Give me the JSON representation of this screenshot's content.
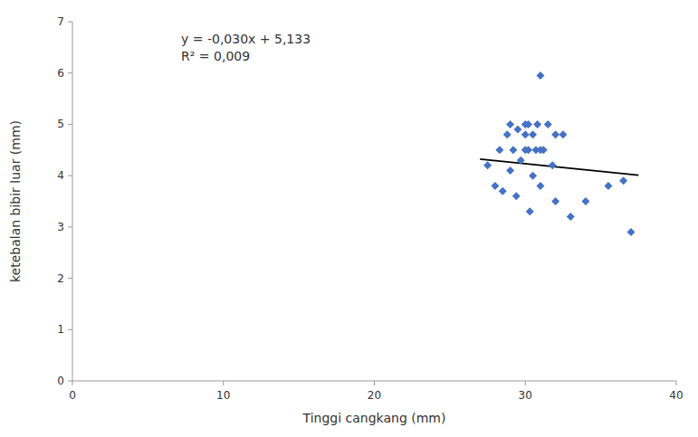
{
  "chart_data": {
    "type": "scatter",
    "title": "",
    "xlabel": "Tinggi cangkang (mm)",
    "ylabel": "ketebalan bibir luar (mm)",
    "annotations": [
      "y = -0,030x + 5,133",
      "R² = 0,009"
    ],
    "xlim": [
      0,
      40
    ],
    "ylim": [
      0,
      7
    ],
    "xticks": [
      0,
      10,
      20,
      30,
      40
    ],
    "yticks": [
      0,
      1,
      2,
      3,
      4,
      5,
      6,
      7
    ],
    "grid": false,
    "series": [
      {
        "type": "scatter",
        "color": "#4472C4",
        "marker": "diamond",
        "x": [
          27.5,
          28.0,
          28.3,
          28.5,
          28.8,
          29.0,
          29.0,
          29.2,
          29.4,
          29.5,
          29.7,
          30.0,
          30.0,
          30.0,
          30.2,
          30.2,
          30.3,
          30.5,
          30.5,
          30.7,
          30.8,
          31.0,
          31.0,
          31.0,
          31.2,
          31.5,
          31.8,
          32.0,
          32.0,
          32.5,
          33.0,
          34.0,
          35.5,
          36.5,
          37.0
        ],
        "values": [
          4.2,
          3.8,
          4.5,
          3.7,
          4.8,
          4.1,
          5.0,
          4.5,
          3.6,
          4.9,
          4.3,
          4.5,
          4.8,
          5.0,
          4.5,
          5.0,
          3.3,
          4.0,
          4.8,
          4.5,
          5.0,
          3.8,
          4.5,
          5.95,
          4.5,
          5.0,
          4.2,
          3.5,
          4.8,
          4.8,
          3.2,
          3.5,
          3.8,
          3.9,
          2.9
        ]
      },
      {
        "type": "line",
        "color": "black",
        "line_style": "solid",
        "x": [
          27.0,
          37.5
        ],
        "values": [
          4.323,
          4.008
        ]
      }
    ]
  }
}
